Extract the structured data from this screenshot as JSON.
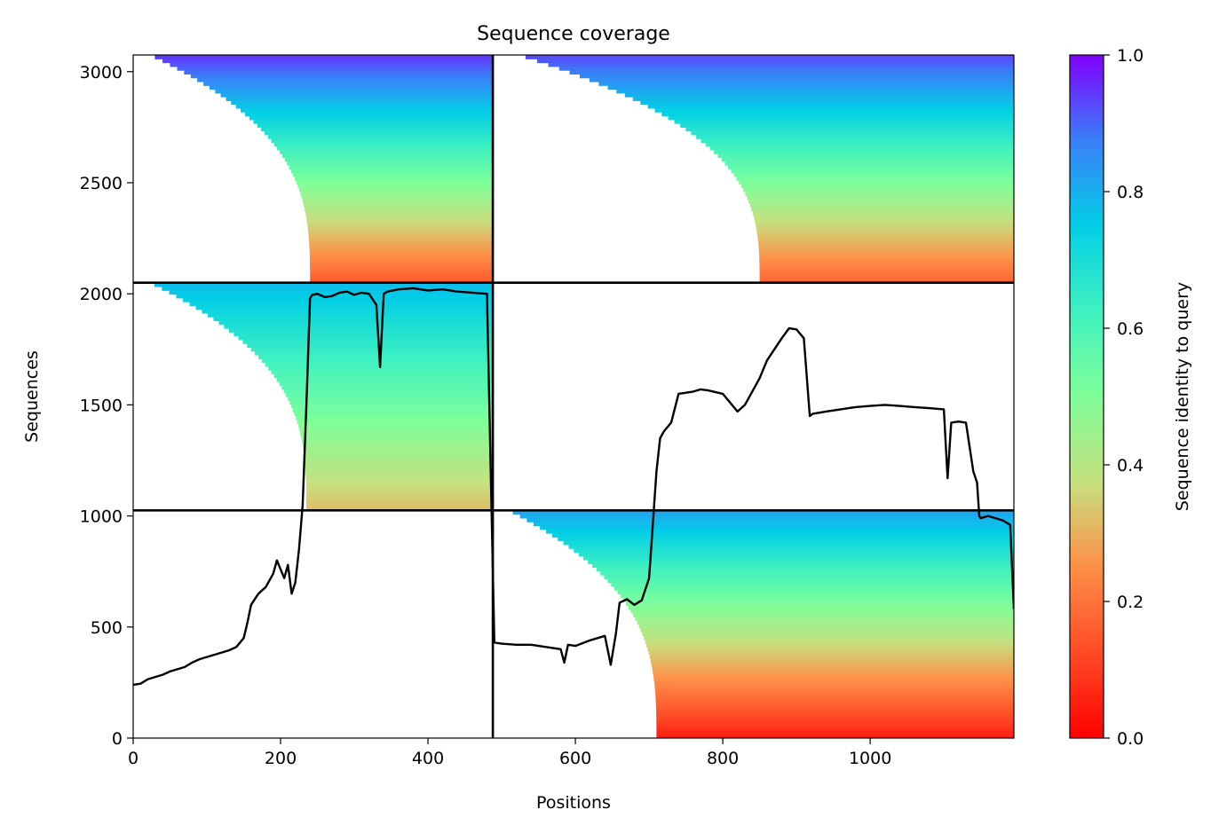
{
  "chart_data": {
    "type": "heatmap",
    "title": "Sequence coverage",
    "xlabel": "Positions",
    "ylabel": "Sequences",
    "xlim": [
      0,
      1195
    ],
    "ylim": [
      0,
      3075
    ],
    "x_ticks": [
      0,
      200,
      400,
      600,
      800,
      1000
    ],
    "y_ticks": [
      0,
      500,
      1000,
      1500,
      2000,
      2500,
      3000
    ],
    "grid": false,
    "colorbar": {
      "label": "Sequence identity to query",
      "range": [
        0.0,
        1.0
      ],
      "ticks": [
        0.0,
        0.2,
        0.4,
        0.6,
        0.8,
        1.0
      ],
      "tick_labels": [
        "0.0",
        "0.2",
        "0.4",
        "0.6",
        "0.8",
        "1.0"
      ],
      "colormap": "rainbow_r"
    },
    "block_divider_x": 488,
    "block_dividers_y": [
      1025,
      2050
    ],
    "coverage_blocks": [
      {
        "x_range": [
          0,
          488
        ],
        "y_range": [
          2050,
          3075
        ],
        "fill_start_x": 240,
        "identity_low": 0.15,
        "identity_high": 0.95
      },
      {
        "x_range": [
          488,
          1195
        ],
        "y_range": [
          2050,
          3075
        ],
        "fill_start_x": 850,
        "identity_low": 0.17,
        "identity_high": 0.93
      },
      {
        "x_range": [
          0,
          488
        ],
        "y_range": [
          1025,
          2050
        ],
        "fill_start_x": 235,
        "identity_low": 0.32,
        "identity_high": 0.78
      },
      {
        "x_range": [
          488,
          1195
        ],
        "y_range": [
          0,
          1025
        ],
        "fill_start_x": 710,
        "identity_low": 0.05,
        "identity_high": 0.82
      }
    ],
    "series": [
      {
        "type": "line",
        "color": "#000000",
        "x": [
          0,
          10,
          20,
          30,
          40,
          50,
          60,
          70,
          80,
          90,
          100,
          110,
          120,
          130,
          140,
          150,
          155,
          160,
          170,
          180,
          190,
          195,
          200,
          205,
          210,
          215,
          220,
          225,
          230,
          235,
          240,
          243,
          250,
          260,
          270,
          280,
          290,
          300,
          310,
          320,
          330,
          335,
          340,
          345,
          360,
          380,
          400,
          420,
          440,
          460,
          480,
          490,
          500,
          520,
          540,
          560,
          580,
          585,
          590,
          600,
          620,
          640,
          648,
          655,
          660,
          670,
          680,
          690,
          700,
          710,
          715,
          720,
          730,
          740,
          760,
          770,
          780,
          800,
          820,
          830,
          840,
          850,
          860,
          870,
          880,
          890,
          900,
          910,
          918,
          922,
          940,
          960,
          980,
          1000,
          1020,
          1040,
          1060,
          1080,
          1100,
          1105,
          1110,
          1120,
          1130,
          1140,
          1145,
          1148,
          1150,
          1160,
          1170,
          1180,
          1190,
          1195
        ],
        "y": [
          240,
          245,
          265,
          275,
          285,
          300,
          310,
          320,
          340,
          355,
          365,
          375,
          385,
          395,
          410,
          450,
          520,
          600,
          650,
          680,
          740,
          800,
          760,
          720,
          780,
          650,
          700,
          850,
          1050,
          1500,
          1980,
          1995,
          2000,
          1985,
          1990,
          2005,
          2010,
          1995,
          2005,
          2000,
          1950,
          1670,
          2000,
          2010,
          2020,
          2025,
          2015,
          2020,
          2010,
          2005,
          2000,
          430,
          425,
          420,
          420,
          410,
          400,
          340,
          420,
          415,
          440,
          460,
          330,
          470,
          610,
          625,
          600,
          620,
          720,
          1200,
          1350,
          1380,
          1420,
          1550,
          1560,
          1570,
          1565,
          1550,
          1470,
          1500,
          1560,
          1620,
          1700,
          1750,
          1800,
          1845,
          1840,
          1800,
          1450,
          1460,
          1470,
          1480,
          1490,
          1495,
          1500,
          1495,
          1490,
          1485,
          1480,
          1170,
          1420,
          1425,
          1420,
          1200,
          1150,
          1000,
          990,
          1000,
          990,
          980,
          960,
          580
        ]
      }
    ]
  }
}
